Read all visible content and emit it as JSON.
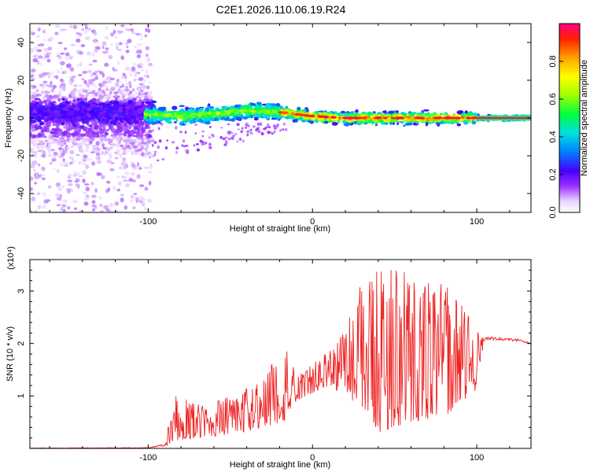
{
  "title": "C2E1.2026.110.06.19.R24",
  "spectrogram": {
    "type": "heatmap",
    "xlabel": "Height of straight line (km)",
    "ylabel": "Frequency (Hz)",
    "xlim": [
      -172,
      133
    ],
    "ylim": [
      -50,
      50
    ],
    "xticks": [
      -100,
      0,
      100
    ],
    "yticks": [
      -40,
      -20,
      0,
      20,
      40
    ],
    "x_tick_labels": [
      "-100",
      "0",
      "100"
    ],
    "y_tick_labels": [
      "-40",
      "-20",
      "0",
      "20",
      "40"
    ],
    "grid": false,
    "ridge_frequency_hz": [
      {
        "x": -100,
        "f": 2
      },
      {
        "x": -80,
        "f": 1
      },
      {
        "x": -60,
        "f": 2
      },
      {
        "x": -40,
        "f": 4
      },
      {
        "x": -20,
        "f": 3
      },
      {
        "x": 0,
        "f": 1
      },
      {
        "x": 20,
        "f": 0
      },
      {
        "x": 40,
        "f": 0
      },
      {
        "x": 60,
        "f": 0
      },
      {
        "x": 80,
        "f": 0
      },
      {
        "x": 100,
        "f": 0
      },
      {
        "x": 133,
        "f": 0
      }
    ],
    "colorbar": {
      "label": "Normalized spectral amplitude",
      "range": [
        0,
        1
      ],
      "ticks": [
        0,
        0.2,
        0.4,
        0.6,
        0.8
      ],
      "tick_labels": [
        "0.0",
        "0.2",
        "0.4",
        "0.6",
        "0.8"
      ]
    }
  },
  "snr": {
    "type": "line",
    "xlabel": "Height of straight line (km)",
    "ylabel": "SNR (10 * v/v)",
    "multiplier": "(x10⁴)",
    "xlim": [
      -172,
      133
    ],
    "ylim": [
      0,
      3.6
    ],
    "xticks": [
      -100,
      0,
      100
    ],
    "yticks": [
      1,
      2,
      3
    ],
    "x_tick_labels": [
      "-100",
      "0",
      "100"
    ],
    "y_tick_labels": [
      "1",
      "2",
      "3"
    ],
    "color": "#ee2222",
    "grid": false,
    "envelope": [
      {
        "x": -172,
        "lo": 0.0,
        "hi": 0.01
      },
      {
        "x": -100,
        "lo": 0.0,
        "hi": 0.02
      },
      {
        "x": -90,
        "lo": 0.03,
        "hi": 0.1
      },
      {
        "x": -83,
        "lo": 0.15,
        "hi": 1.15
      },
      {
        "x": -70,
        "lo": 0.2,
        "hi": 0.85
      },
      {
        "x": -50,
        "lo": 0.25,
        "hi": 1.0
      },
      {
        "x": -30,
        "lo": 0.4,
        "hi": 1.3
      },
      {
        "x": -17,
        "lo": 0.5,
        "hi": 2.1
      },
      {
        "x": -10,
        "lo": 0.9,
        "hi": 1.4
      },
      {
        "x": 0,
        "lo": 1.05,
        "hi": 1.6
      },
      {
        "x": 10,
        "lo": 1.2,
        "hi": 1.9
      },
      {
        "x": 20,
        "lo": 1.0,
        "hi": 2.3
      },
      {
        "x": 30,
        "lo": 0.8,
        "hi": 3.2
      },
      {
        "x": 40,
        "lo": 0.3,
        "hi": 3.4
      },
      {
        "x": 60,
        "lo": 0.5,
        "hi": 3.5
      },
      {
        "x": 80,
        "lo": 0.6,
        "hi": 3.2
      },
      {
        "x": 100,
        "lo": 1.1,
        "hi": 2.4
      },
      {
        "x": 105,
        "lo": 2.05,
        "hi": 2.15
      },
      {
        "x": 125,
        "lo": 2.03,
        "hi": 2.1
      },
      {
        "x": 133,
        "lo": 1.98,
        "hi": 2.02
      }
    ]
  }
}
